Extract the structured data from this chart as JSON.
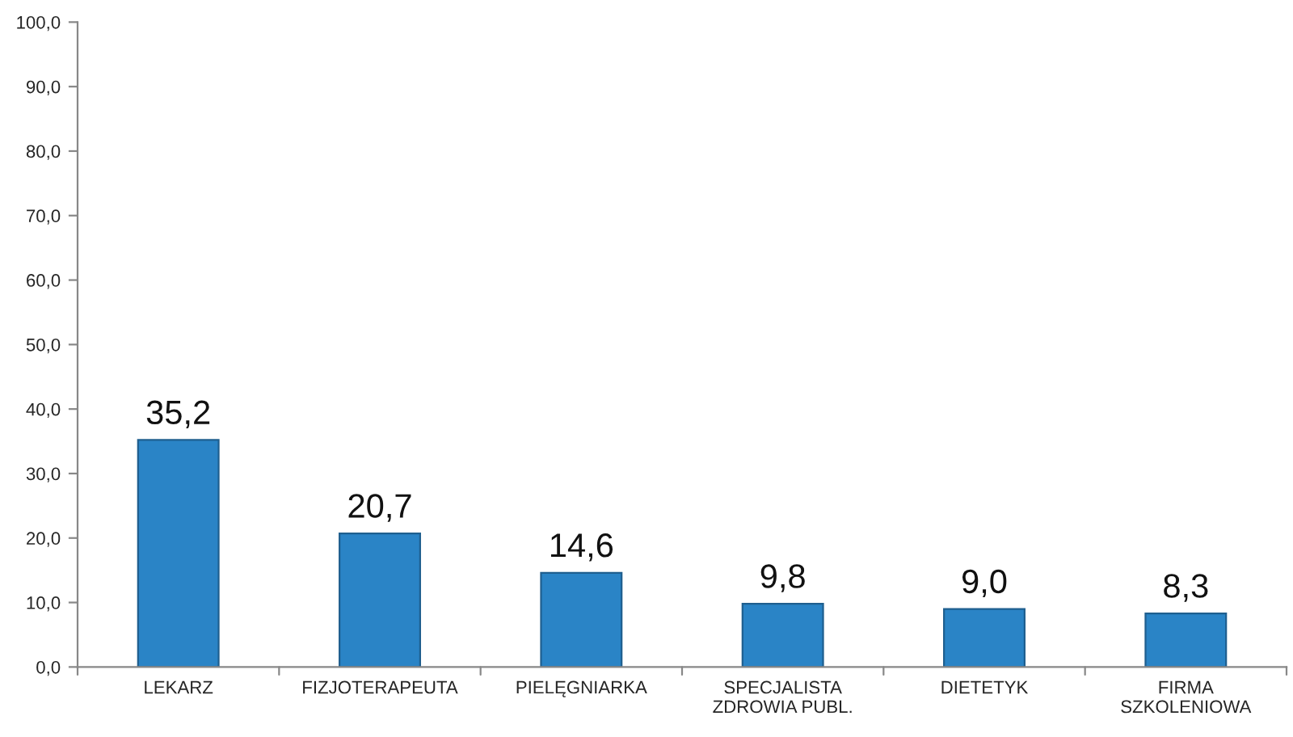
{
  "chart_data": {
    "type": "bar",
    "categories": [
      "LEKARZ",
      "FIZJOTERAPEUTA",
      "PIELĘGNIARKA",
      "SPECJALISTA\nZDROWIA PUBL.",
      "DIETETYK",
      "FIRMA\nSZKOLENIOWA"
    ],
    "values": [
      35.2,
      20.7,
      14.6,
      9.8,
      9.0,
      8.3
    ],
    "value_labels": [
      "35,2",
      "20,7",
      "14,6",
      "9,8",
      "9,0",
      "8,3"
    ],
    "color": "#2a84c6",
    "ylim": [
      0,
      100
    ],
    "yticks": [
      {
        "value": 0,
        "label": "0,0"
      },
      {
        "value": 10,
        "label": "10,0"
      },
      {
        "value": 20,
        "label": "20,0"
      },
      {
        "value": 30,
        "label": "30,0"
      },
      {
        "value": 40,
        "label": "40,0"
      },
      {
        "value": 50,
        "label": "50,0"
      },
      {
        "value": 60,
        "label": "60,0"
      },
      {
        "value": 70,
        "label": "70,0"
      },
      {
        "value": 80,
        "label": "80,0"
      },
      {
        "value": 90,
        "label": "90,0"
      },
      {
        "value": 100,
        "label": "100,0"
      }
    ],
    "grid": false
  }
}
